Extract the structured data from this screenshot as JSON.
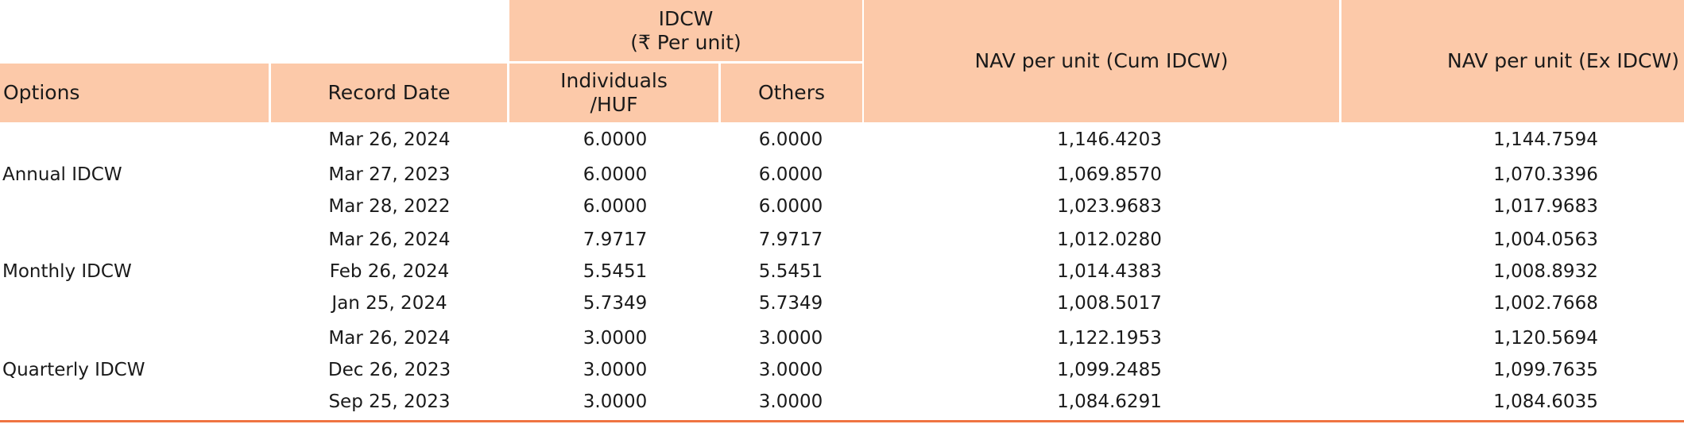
{
  "table": {
    "headers": {
      "options": "Options",
      "record_date": "Record Date",
      "idcw_group": "IDCW\n(₹ Per unit)",
      "individuals_huf": "Individuals\n/HUF",
      "others": "Others",
      "nav_cum": "NAV per unit (Cum IDCW)",
      "nav_ex": "NAV per unit (Ex IDCW)"
    },
    "groups": [
      {
        "option": "Annual IDCW"
      },
      {
        "option": "Monthly IDCW"
      },
      {
        "option": "Quarterly IDCW"
      }
    ],
    "rows": [
      {
        "record_date": "Mar 26, 2024",
        "individuals_huf": "6.0000",
        "others": "6.0000",
        "nav_cum": "1,146.4203",
        "nav_ex": "1,144.7594"
      },
      {
        "record_date": "Mar 27, 2023",
        "individuals_huf": "6.0000",
        "others": "6.0000",
        "nav_cum": "1,069.8570",
        "nav_ex": "1,070.3396"
      },
      {
        "record_date": "Mar 28, 2022",
        "individuals_huf": "6.0000",
        "others": "6.0000",
        "nav_cum": "1,023.9683",
        "nav_ex": "1,017.9683"
      },
      {
        "record_date": "Mar 26, 2024",
        "individuals_huf": "7.9717",
        "others": "7.9717",
        "nav_cum": "1,012.0280",
        "nav_ex": "1,004.0563"
      },
      {
        "record_date": "Feb 26, 2024",
        "individuals_huf": "5.5451",
        "others": "5.5451",
        "nav_cum": "1,014.4383",
        "nav_ex": "1,008.8932"
      },
      {
        "record_date": "Jan 25, 2024",
        "individuals_huf": "5.7349",
        "others": "5.7349",
        "nav_cum": "1,008.5017",
        "nav_ex": "1,002.7668"
      },
      {
        "record_date": "Mar 26, 2024",
        "individuals_huf": "3.0000",
        "others": "3.0000",
        "nav_cum": "1,122.1953",
        "nav_ex": "1,120.5694"
      },
      {
        "record_date": "Dec 26, 2023",
        "individuals_huf": "3.0000",
        "others": "3.0000",
        "nav_cum": "1,099.2485",
        "nav_ex": "1,099.7635"
      },
      {
        "record_date": "Sep 25, 2023",
        "individuals_huf": "3.0000",
        "others": "3.0000",
        "nav_cum": "1,084.6291",
        "nav_ex": "1,084.6035"
      }
    ]
  },
  "colors": {
    "header_bg": "#fcc9a9",
    "bottom_rule": "#ef7442"
  }
}
